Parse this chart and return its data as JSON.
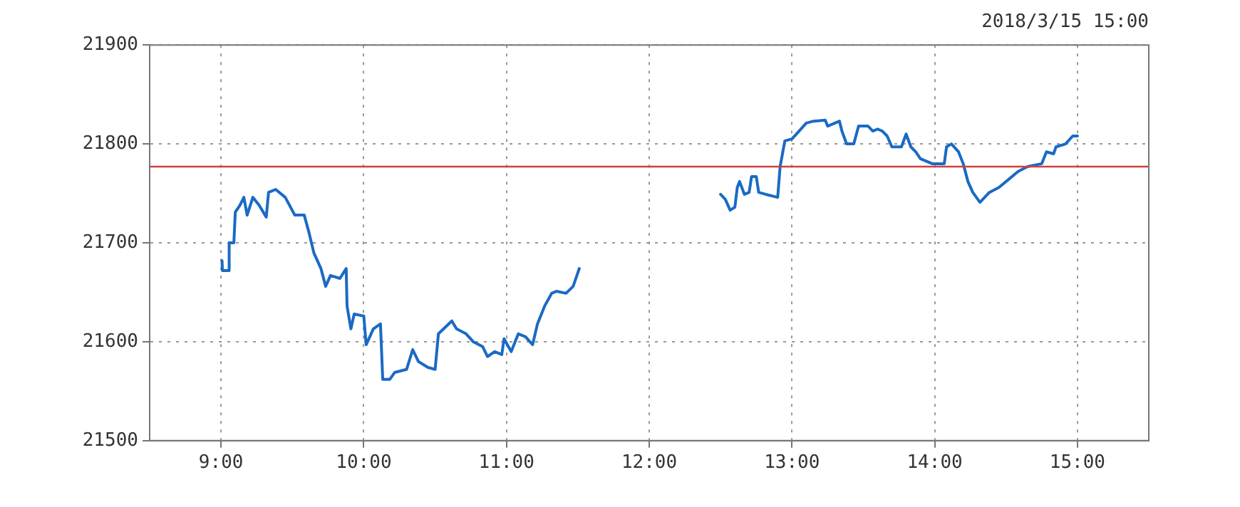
{
  "chart_data": {
    "type": "line",
    "subtitle": "2018/3/15 15:00",
    "x": [
      9.007,
      9.01,
      9.05,
      9.057,
      9.09,
      9.1,
      9.133,
      9.16,
      9.183,
      9.223,
      9.267,
      9.317,
      9.333,
      9.383,
      9.45,
      9.517,
      9.583,
      9.617,
      9.65,
      9.7,
      9.733,
      9.767,
      9.833,
      9.877,
      9.883,
      9.91,
      9.933,
      10.0,
      10.017,
      10.067,
      10.117,
      10.133,
      10.183,
      10.217,
      10.3,
      10.343,
      10.383,
      10.45,
      10.5,
      10.523,
      10.617,
      10.65,
      10.717,
      10.767,
      10.833,
      10.867,
      10.917,
      10.967,
      10.983,
      11.033,
      11.083,
      11.133,
      11.183,
      11.217,
      11.267,
      11.317,
      11.35,
      11.417,
      11.467,
      11.51,
      12.0,
      12.5,
      12.533,
      12.567,
      12.6,
      12.617,
      12.633,
      12.667,
      12.7,
      12.717,
      12.75,
      12.767,
      12.817,
      12.9,
      12.917,
      12.95,
      13.0,
      13.05,
      13.1,
      13.15,
      13.233,
      13.25,
      13.333,
      13.35,
      13.383,
      13.433,
      13.467,
      13.533,
      13.567,
      13.6,
      13.633,
      13.667,
      13.7,
      13.767,
      13.8,
      13.833,
      13.867,
      13.9,
      13.95,
      13.983,
      14.067,
      14.083,
      14.117,
      14.167,
      14.2,
      14.233,
      14.267,
      14.317,
      14.383,
      14.45,
      14.517,
      14.583,
      14.65,
      14.75,
      14.783,
      14.833,
      14.85,
      14.917,
      14.967,
      15.0
    ],
    "series": [
      {
        "color": "#1a6ac4",
        "values": [
          21682,
          21672,
          21672,
          21700,
          21700,
          21731,
          21738,
          21746,
          21728,
          21746,
          21738,
          21726,
          21751,
          21754,
          21746,
          21728,
          21728,
          21710,
          21690,
          21674,
          21656,
          21667,
          21664,
          21674,
          21636,
          21613,
          21628,
          21626,
          21597,
          21613,
          21618,
          21562,
          21562,
          21569,
          21572,
          21592,
          21580,
          21574,
          21572,
          21608,
          21621,
          21613,
          21608,
          21600,
          21595,
          21585,
          21590,
          21587,
          21603,
          21590,
          21608,
          21605,
          21597,
          21618,
          21636,
          21649,
          21651,
          21649,
          21656,
          21674,
          null,
          21749,
          21744,
          21733,
          21736,
          21756,
          21762,
          21749,
          21751,
          21767,
          21767,
          21751,
          21749,
          21746,
          21777,
          21803,
          21805,
          21813,
          21821,
          21823,
          21824,
          21818,
          21823,
          21813,
          21800,
          21800,
          21818,
          21818,
          21813,
          21815,
          21813,
          21808,
          21797,
          21797,
          21810,
          21797,
          21792,
          21785,
          21782,
          21780,
          21780,
          21797,
          21800,
          21792,
          21780,
          21762,
          21751,
          21741,
          21751,
          21756,
          21764,
          21772,
          21777,
          21780,
          21792,
          21790,
          21797,
          21800,
          21808,
          21808
        ]
      }
    ],
    "xlim": [
      8.5,
      15.5
    ],
    "xticks": [
      {
        "value": 9,
        "label": "9:00"
      },
      {
        "value": 10,
        "label": "10:00"
      },
      {
        "value": 11,
        "label": "11:00"
      },
      {
        "value": 12,
        "label": "12:00"
      },
      {
        "value": 13,
        "label": "13:00"
      },
      {
        "value": 14,
        "label": "14:00"
      },
      {
        "value": 15,
        "label": "15:00"
      }
    ],
    "ylim": [
      21500,
      21900
    ],
    "yticks": [
      21500,
      21600,
      21700,
      21800,
      21900
    ],
    "ref_lines": [
      {
        "axis": "y",
        "value": 21777,
        "color": "#d04040"
      }
    ],
    "grid": true,
    "legend": false,
    "marker": "none",
    "line_style": "solid"
  }
}
